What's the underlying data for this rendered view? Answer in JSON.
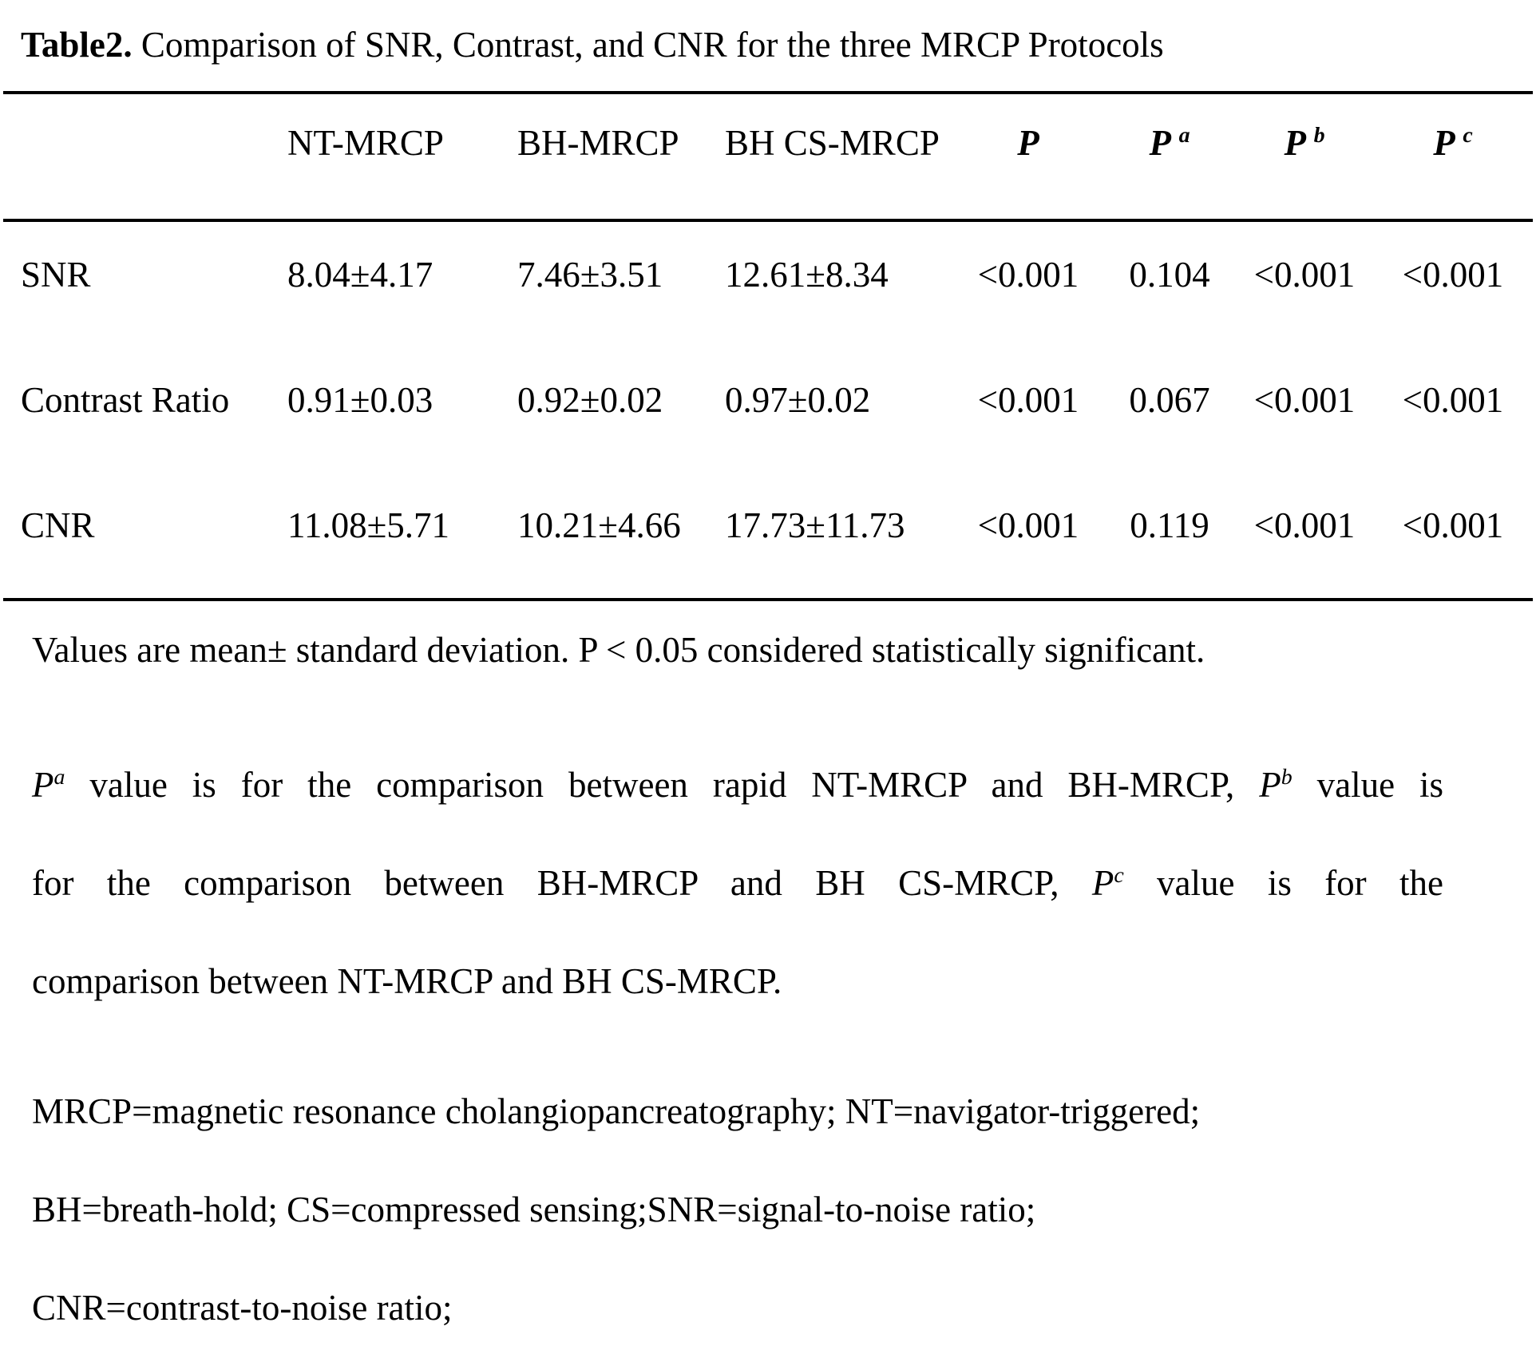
{
  "title": {
    "label": "Table2.",
    "text": "Comparison of SNR, Contrast, and CNR for the three MRCP Protocols"
  },
  "table": {
    "columns": [
      "NT-MRCP",
      "BH-MRCP",
      "BH CS-MRCP"
    ],
    "p_headers": [
      {
        "base": "P",
        "sup": ""
      },
      {
        "base": "P",
        "sup": "a"
      },
      {
        "base": "P",
        "sup": "b"
      },
      {
        "base": "P",
        "sup": "c"
      }
    ],
    "rows": [
      {
        "label": "SNR",
        "values": [
          "8.04±4.17",
          "7.46±3.51",
          "12.61±8.34"
        ],
        "p": [
          "<0.001",
          "0.104",
          "<0.001",
          "<0.001"
        ]
      },
      {
        "label": "Contrast Ratio",
        "values": [
          "0.91±0.03",
          "0.92±0.02",
          "0.97±0.02"
        ],
        "p": [
          "<0.001",
          "0.067",
          "<0.001",
          "<0.001"
        ]
      },
      {
        "label": "CNR",
        "values": [
          "11.08±5.71",
          "10.21±4.66",
          "17.73±11.73"
        ],
        "p": [
          "<0.001",
          "0.119",
          "<0.001",
          "<0.001"
        ]
      }
    ]
  },
  "footnotes": {
    "significance": "Values are mean± standard deviation. P < 0.05 considered statistically significant.",
    "p_definitions": {
      "line1": {
        "p1": "P",
        "sup1": "a",
        "t1": " value is for the comparison between rapid NT-MRCP and BH-MRCP, ",
        "p2": "P",
        "sup2": "b",
        "t2": " value is"
      },
      "line2": {
        "t1": "for the comparison between BH-MRCP and BH CS-MRCP, ",
        "p1": "P",
        "sup1": "c",
        "t2": " value is for the"
      },
      "line3": "comparison between NT-MRCP and BH CS-MRCP."
    },
    "abbreviations": [
      "MRCP=magnetic resonance cholangiopancreatography; NT=navigator-triggered;",
      "BH=breath-hold; CS=compressed sensing;SNR=signal-to-noise ratio;",
      "CNR=contrast-to-noise ratio;"
    ]
  }
}
